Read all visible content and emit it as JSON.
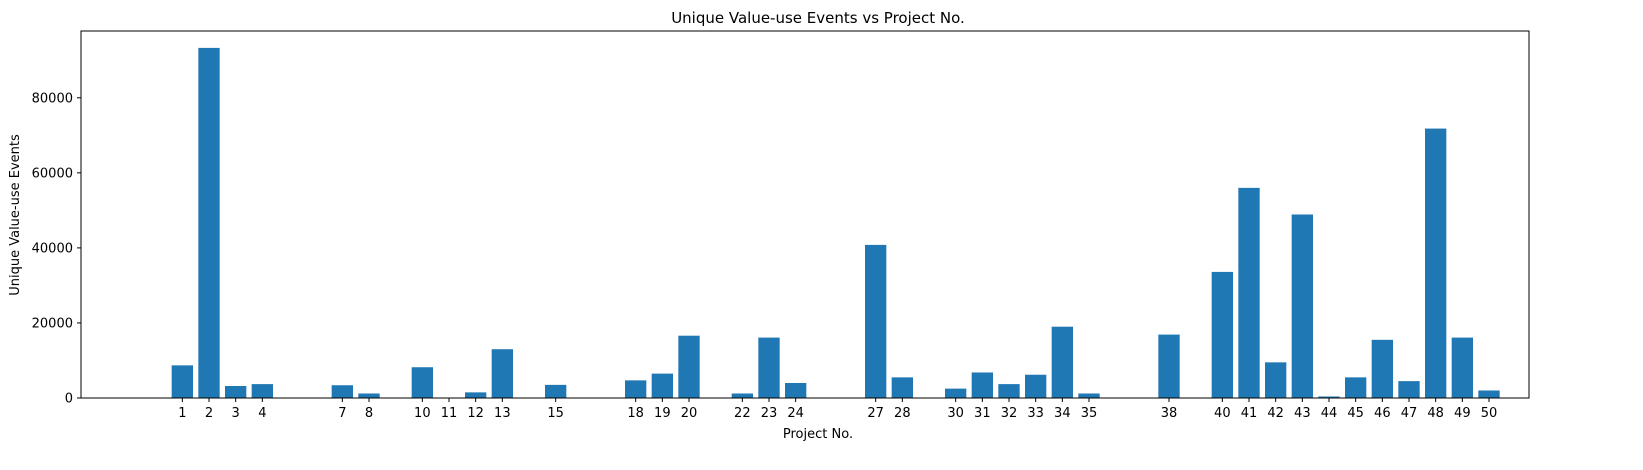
{
  "chart_data": {
    "type": "bar",
    "title": "Unique Value-use Events vs Project No.",
    "xlabel": "Project No.",
    "ylabel": "Unique Value-use Events",
    "categories": [
      "1",
      "2",
      "3",
      "4",
      "7",
      "8",
      "10",
      "11",
      "12",
      "13",
      "15",
      "18",
      "19",
      "20",
      "22",
      "23",
      "24",
      "27",
      "28",
      "30",
      "31",
      "32",
      "33",
      "34",
      "35",
      "38",
      "40",
      "41",
      "42",
      "43",
      "44",
      "45",
      "46",
      "47",
      "48",
      "49",
      "50"
    ],
    "x": [
      1,
      2,
      3,
      4,
      7,
      8,
      10,
      11,
      12,
      13,
      15,
      18,
      19,
      20,
      22,
      23,
      24,
      27,
      28,
      30,
      31,
      32,
      33,
      34,
      35,
      38,
      40,
      41,
      42,
      43,
      44,
      45,
      46,
      47,
      48,
      49,
      50
    ],
    "values": [
      8700,
      93300,
      3200,
      3700,
      3400,
      1200,
      8200,
      0,
      1500,
      13000,
      3500,
      4700,
      6500,
      16600,
      1200,
      16100,
      4000,
      40800,
      5500,
      2500,
      6800,
      3700,
      6200,
      19000,
      1200,
      16900,
      33600,
      56000,
      9500,
      48900,
      400,
      5500,
      15500,
      4500,
      71800,
      16100,
      2000
    ],
    "xlim": [
      -2.8,
      51.5
    ],
    "ylim": [
      0,
      97800
    ],
    "yticks": [
      0,
      20000,
      40000,
      60000,
      80000
    ],
    "bar_color": "#1f77b4",
    "grid": false
  }
}
